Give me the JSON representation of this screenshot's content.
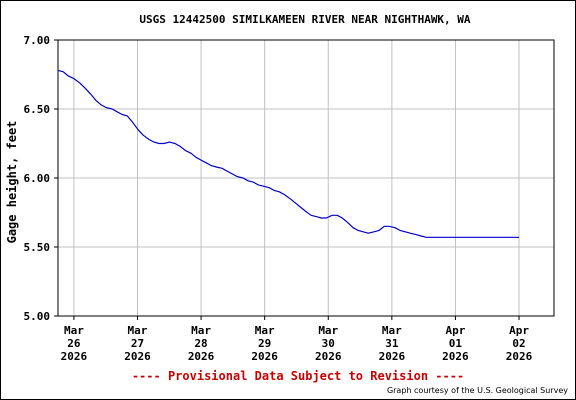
{
  "chart_data": {
    "type": "line",
    "title": "USGS 12442500 SIMILKAMEEN RIVER NEAR NIGHTHAWK, WA",
    "ylabel": "Gage height, feet",
    "xlabel": "",
    "ylim": [
      5.0,
      7.0
    ],
    "yticks": [
      "5.00",
      "5.50",
      "6.00",
      "6.50",
      "7.00"
    ],
    "ytick_values": [
      5.0,
      5.5,
      6.0,
      6.5,
      7.0
    ],
    "xticks": [
      {
        "line1": "Mar",
        "line2": "26",
        "line3": "2026",
        "day": 0
      },
      {
        "line1": "Mar",
        "line2": "27",
        "line3": "2026",
        "day": 1
      },
      {
        "line1": "Mar",
        "line2": "28",
        "line3": "2026",
        "day": 2
      },
      {
        "line1": "Mar",
        "line2": "29",
        "line3": "2026",
        "day": 3
      },
      {
        "line1": "Mar",
        "line2": "30",
        "line3": "2026",
        "day": 4
      },
      {
        "line1": "Mar",
        "line2": "31",
        "line3": "2026",
        "day": 5
      },
      {
        "line1": "Apr",
        "line2": "01",
        "line3": "2026",
        "day": 6
      },
      {
        "line1": "Apr",
        "line2": "02",
        "line3": "2026",
        "day": 7
      }
    ],
    "xlim_days": [
      -0.25,
      7.55
    ],
    "grid": true,
    "series": [
      {
        "color": "#0000cc",
        "x": [
          -0.25,
          -0.17,
          -0.09,
          0.0,
          0.09,
          0.18,
          0.26,
          0.35,
          0.43,
          0.51,
          0.6,
          0.68,
          0.76,
          0.84,
          0.93,
          1.01,
          1.09,
          1.18,
          1.26,
          1.34,
          1.42,
          1.5,
          1.59,
          1.67,
          1.75,
          1.84,
          1.92,
          2.0,
          2.08,
          2.16,
          2.24,
          2.33,
          2.41,
          2.49,
          2.57,
          2.66,
          2.74,
          2.82,
          2.9,
          2.99,
          3.07,
          3.15,
          3.23,
          3.31,
          3.4,
          3.48,
          3.56,
          3.64,
          3.73,
          3.81,
          3.89,
          3.97,
          4.06,
          4.14,
          4.22,
          4.3,
          4.39,
          4.47,
          4.55,
          4.63,
          4.72,
          4.8,
          4.88,
          4.96,
          5.05,
          5.13,
          5.21,
          5.29,
          5.38,
          5.46,
          5.54,
          5.62,
          5.71,
          5.79,
          5.87,
          5.95,
          6.04,
          6.12,
          6.2,
          6.28,
          6.37,
          6.45,
          6.53,
          6.61,
          6.7,
          6.78,
          6.86,
          6.95,
          7.0
        ],
        "y": [
          6.78,
          6.77,
          6.74,
          6.72,
          6.69,
          6.65,
          6.61,
          6.56,
          6.53,
          6.51,
          6.5,
          6.48,
          6.46,
          6.45,
          6.4,
          6.35,
          6.31,
          6.28,
          6.26,
          6.25,
          6.25,
          6.26,
          6.25,
          6.23,
          6.2,
          6.18,
          6.15,
          6.13,
          6.11,
          6.09,
          6.08,
          6.07,
          6.05,
          6.03,
          6.01,
          6.0,
          5.98,
          5.97,
          5.95,
          5.94,
          5.93,
          5.91,
          5.9,
          5.88,
          5.85,
          5.82,
          5.79,
          5.76,
          5.73,
          5.72,
          5.71,
          5.71,
          5.73,
          5.73,
          5.71,
          5.68,
          5.64,
          5.62,
          5.61,
          5.6,
          5.61,
          5.62,
          5.65,
          5.65,
          5.64,
          5.62,
          5.61,
          5.6,
          5.59,
          5.58,
          5.57,
          5.57,
          5.57,
          5.57,
          5.57,
          5.57,
          5.57,
          5.57,
          5.57,
          5.57,
          5.57,
          5.57,
          5.57,
          5.57,
          5.57,
          5.57,
          5.57,
          5.57,
          5.57
        ]
      }
    ]
  },
  "footer": {
    "provisional": "---- Provisional Data Subject to Revision ----",
    "credit": "Graph courtesy of the U.S. Geological Survey"
  },
  "colors": {
    "line": "#0000cc",
    "grid": "#c0c0c0",
    "provisional": "#cc0000"
  }
}
